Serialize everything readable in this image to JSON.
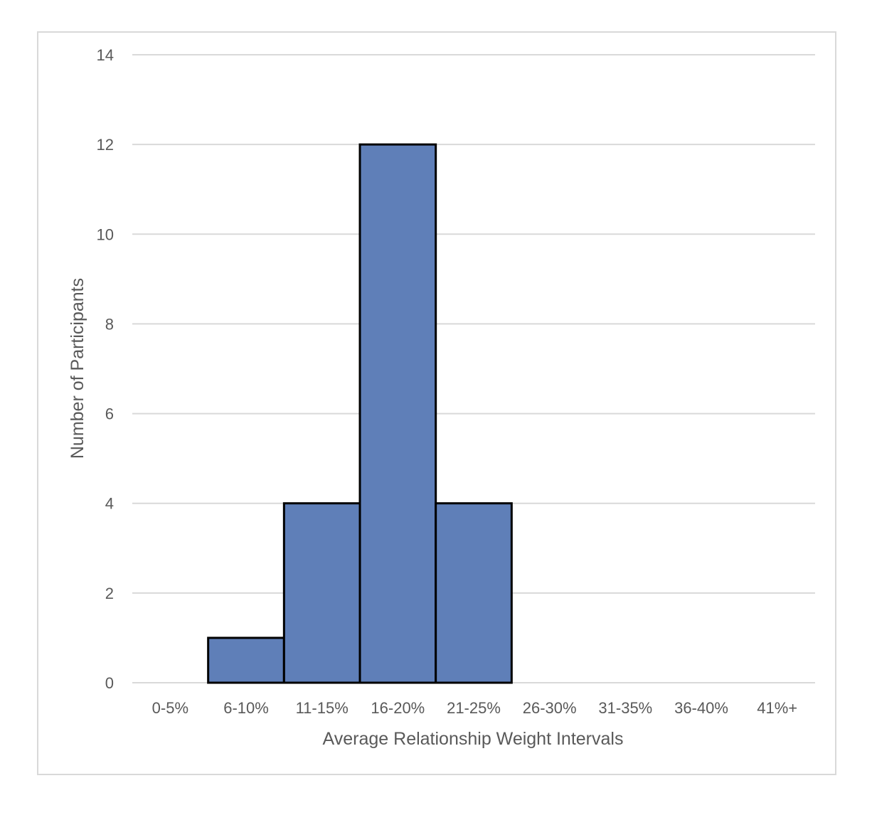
{
  "chart_data": {
    "type": "bar",
    "title": "",
    "xlabel": "Average Relationship Weight Intervals",
    "ylabel": "Number of Participants",
    "categories": [
      "0-5%",
      "6-10%",
      "11-15%",
      "16-20%",
      "21-25%",
      "26-30%",
      "31-35%",
      "36-40%",
      "41%+"
    ],
    "values": [
      0,
      1,
      4,
      12,
      4,
      0,
      0,
      0,
      0
    ],
    "ylim": [
      0,
      14
    ],
    "yticks": [
      0,
      2,
      4,
      6,
      8,
      10,
      12,
      14
    ],
    "grid": "horizontal",
    "legend": "none",
    "colors": {
      "bar_fill": "#5f7fb8",
      "bar_stroke": "#000000",
      "gridline": "#d9d9d9",
      "text": "#595959",
      "frame": "#d9d9d9"
    }
  }
}
